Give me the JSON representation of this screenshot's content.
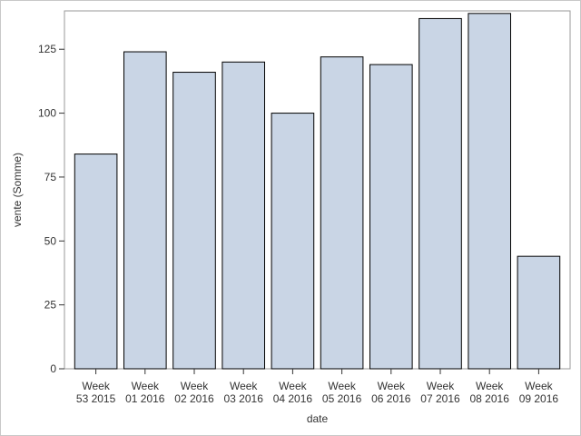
{
  "chart_data": {
    "type": "bar",
    "categories": [
      [
        "Week",
        "53 2015"
      ],
      [
        "Week",
        "01 2016"
      ],
      [
        "Week",
        "02 2016"
      ],
      [
        "Week",
        "03 2016"
      ],
      [
        "Week",
        "04 2016"
      ],
      [
        "Week",
        "05 2016"
      ],
      [
        "Week",
        "06 2016"
      ],
      [
        "Week",
        "07 2016"
      ],
      [
        "Week",
        "08 2016"
      ],
      [
        "Week",
        "09 2016"
      ]
    ],
    "values": [
      84,
      124,
      116,
      120,
      100,
      122,
      119,
      137,
      139,
      44
    ],
    "xlabel": "date",
    "ylabel": "vente (Somme)",
    "ylim": [
      0,
      140
    ],
    "yticks": [
      0,
      25,
      50,
      75,
      100,
      125
    ],
    "bar_color": "#c9d5e5",
    "bar_edge_color": "#000000",
    "grid": false,
    "legend": "none"
  }
}
